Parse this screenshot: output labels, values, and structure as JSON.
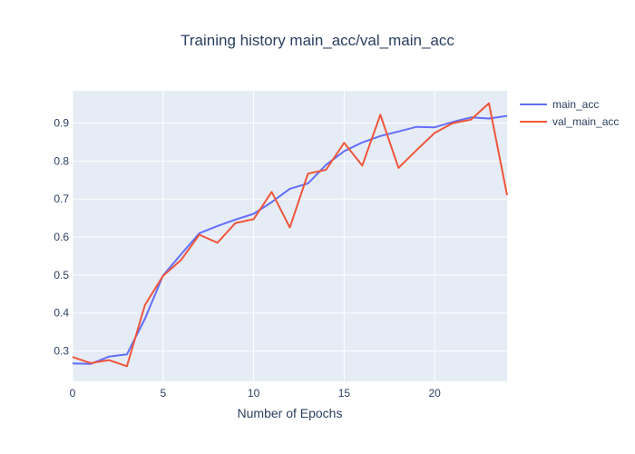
{
  "chart_data": {
    "type": "line",
    "title": "Training history main_acc/val_main_acc",
    "xlabel": "Number of Epochs",
    "ylabel": "",
    "xlim": [
      0,
      24
    ],
    "ylim": [
      0.22,
      0.985
    ],
    "x_ticks": [
      0,
      5,
      10,
      15,
      20
    ],
    "x_tick_labels": [
      "0",
      "5",
      "10",
      "15",
      "20"
    ],
    "y_ticks": [
      0.3,
      0.4,
      0.5,
      0.6,
      0.7,
      0.8,
      0.9
    ],
    "y_tick_labels": [
      "0.3",
      "0.4",
      "0.5",
      "0.6",
      "0.7",
      "0.8",
      "0.9"
    ],
    "grid": true,
    "legend_position": "top-right",
    "x": [
      0,
      1,
      2,
      3,
      4,
      5,
      6,
      7,
      8,
      9,
      10,
      11,
      12,
      13,
      14,
      15,
      16,
      17,
      18,
      19,
      20,
      21,
      22,
      23,
      24
    ],
    "series": [
      {
        "name": "main_acc",
        "color": "#636efa",
        "values": [
          0.267,
          0.266,
          0.285,
          0.291,
          0.385,
          0.499,
          0.555,
          0.61,
          0.629,
          0.646,
          0.661,
          0.692,
          0.727,
          0.741,
          0.79,
          0.826,
          0.849,
          0.866,
          0.878,
          0.89,
          0.889,
          0.903,
          0.915,
          0.912,
          0.919
        ]
      },
      {
        "name": "val_main_acc",
        "color": "#ef553b",
        "values": [
          0.284,
          0.268,
          0.276,
          0.26,
          0.421,
          0.498,
          0.54,
          0.606,
          0.585,
          0.637,
          0.647,
          0.719,
          0.625,
          0.767,
          0.777,
          0.848,
          0.788,
          0.922,
          0.782,
          0.829,
          0.874,
          0.9,
          0.909,
          0.952,
          0.71
        ]
      }
    ]
  }
}
